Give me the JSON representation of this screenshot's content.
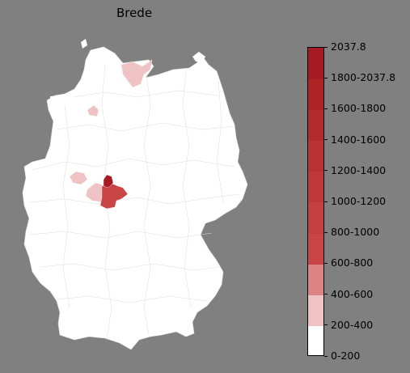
{
  "title": "Brede",
  "legend": {
    "max_label": "2037.8",
    "bins": [
      {
        "label": "0-200",
        "color": "#ffffff"
      },
      {
        "label": "200-400",
        "color": "#efc3c3"
      },
      {
        "label": "400-600",
        "color": "#dd8383"
      },
      {
        "label": "600-800",
        "color": "#c94545"
      },
      {
        "label": "800-1000",
        "color": "#c43f3f"
      },
      {
        "label": "1000-1200",
        "color": "#bf3838"
      },
      {
        "label": "1200-1400",
        "color": "#ba3232"
      },
      {
        "label": "1400-1600",
        "color": "#b42b2b"
      },
      {
        "label": "1600-1800",
        "color": "#ae2323"
      },
      {
        "label": "1800-2037.8",
        "color": "#a61a24"
      }
    ]
  },
  "map": {
    "base_color": "#ffffff",
    "highlighted_regions": [
      {
        "bin": "200-400",
        "color": "#efc3c3"
      },
      {
        "bin": "200-400",
        "color": "#efc3c3"
      },
      {
        "bin": "200-400",
        "color": "#efc3c3"
      },
      {
        "bin": "200-400",
        "color": "#efc3c3"
      },
      {
        "bin": "600-800",
        "color": "#c94545"
      },
      {
        "bin": "1800-2037.8",
        "color": "#a61a24"
      }
    ]
  }
}
